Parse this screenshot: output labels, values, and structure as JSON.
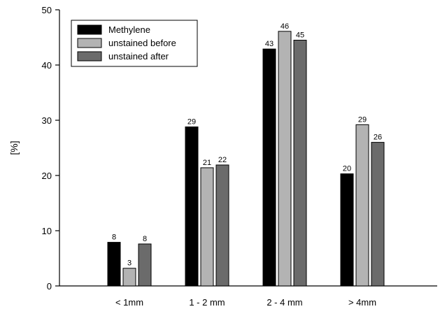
{
  "chart_data": {
    "type": "bar",
    "title": "",
    "xlabel": "",
    "ylabel": "[%]",
    "ylim": [
      0,
      50
    ],
    "yticks": [
      0,
      10,
      20,
      30,
      40,
      50
    ],
    "categories": [
      "< 1mm",
      "1 - 2 mm",
      "2 - 4 mm",
      "> 4mm"
    ],
    "series": [
      {
        "name": "Methylene",
        "color": "#000000",
        "values": [
          8,
          29,
          43,
          20
        ],
        "labels": [
          "8",
          "29",
          "43",
          "20"
        ]
      },
      {
        "name": "unstained before",
        "color": "#b3b3b3",
        "values": [
          3,
          21,
          46,
          29
        ],
        "labels": [
          "3",
          "21",
          "46",
          "29"
        ]
      },
      {
        "name": "unstained after",
        "color": "#6b6b6b",
        "values": [
          8,
          22,
          45,
          26
        ],
        "labels": [
          "8",
          "22",
          "45",
          "26"
        ]
      }
    ],
    "plotted_values": [
      [
        7.9,
        28.8,
        42.9,
        20.3
      ],
      [
        3.2,
        21.4,
        46.1,
        29.2
      ],
      [
        7.6,
        21.9,
        44.5,
        26.0
      ]
    ],
    "legend_position": "top-left",
    "grid": false
  }
}
